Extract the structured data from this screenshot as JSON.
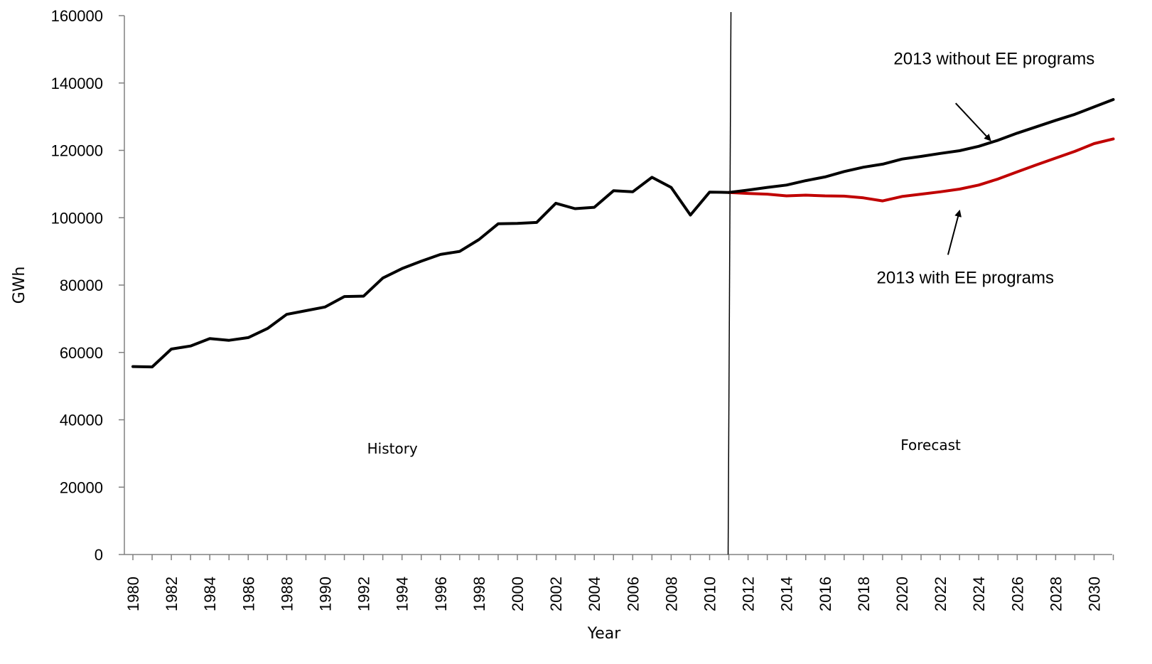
{
  "chart_data": {
    "type": "line",
    "title": "",
    "xlabel": "Year",
    "ylabel": "GWh",
    "xlim": [
      1980,
      2031
    ],
    "ylim": [
      0,
      160000
    ],
    "yticks": [
      0,
      20000,
      40000,
      60000,
      80000,
      100000,
      120000,
      140000,
      160000
    ],
    "xticks": [
      1980,
      1982,
      1984,
      1986,
      1988,
      1990,
      1992,
      1994,
      1996,
      1998,
      2000,
      2002,
      2004,
      2006,
      2008,
      2010,
      2012,
      2014,
      2016,
      2018,
      2020,
      2022,
      2024,
      2026,
      2028,
      2030
    ],
    "grid": false,
    "legend": "none",
    "divider_year": 2011,
    "regions": [
      {
        "label": "History",
        "x": 1993.5,
        "y": 30000
      },
      {
        "label": "Forecast",
        "x": 2021.5,
        "y": 31000
      }
    ],
    "series": [
      {
        "color": "#000000",
        "x": [
          1980,
          1981,
          1982,
          1983,
          1984,
          1985,
          1986,
          1987,
          1988,
          1989,
          1990,
          1991,
          1992,
          1993,
          1994,
          1995,
          1996,
          1997,
          1998,
          1999,
          2000,
          2001,
          2002,
          2003,
          2004,
          2005,
          2006,
          2007,
          2008,
          2009,
          2010,
          2011
        ],
        "y": [
          55800,
          55700,
          61000,
          61900,
          64100,
          63600,
          64400,
          67100,
          71300,
          72400,
          73500,
          76600,
          76700,
          82100,
          84900,
          87100,
          89100,
          90000,
          93500,
          98200,
          98300,
          98600,
          104300,
          102700,
          103100,
          108000,
          107700,
          112000,
          109000,
          100800,
          107600,
          107500
        ]
      },
      {
        "color": "#c00000",
        "x": [
          2011,
          2012,
          2013,
          2014,
          2015,
          2016,
          2017,
          2018,
          2019,
          2020,
          2021,
          2022,
          2023,
          2024,
          2025,
          2026,
          2027,
          2028,
          2029,
          2030,
          2031
        ],
        "y": [
          107500,
          107200,
          107000,
          106500,
          106700,
          106500,
          106400,
          105900,
          105000,
          106300,
          107000,
          107700,
          108500,
          109700,
          111500,
          113600,
          115700,
          117700,
          119700,
          122000,
          123400
        ]
      },
      {
        "color": "#000000",
        "x": [
          2011,
          2012,
          2013,
          2014,
          2015,
          2016,
          2017,
          2018,
          2019,
          2020,
          2021,
          2022,
          2023,
          2024,
          2025,
          2026,
          2027,
          2028,
          2029,
          2030,
          2031
        ],
        "y": [
          107500,
          108200,
          109000,
          109700,
          111000,
          112100,
          113700,
          115000,
          115900,
          117400,
          118200,
          119100,
          119900,
          121200,
          123000,
          125100,
          127000,
          128900,
          130700,
          132900,
          135100
        ]
      }
    ],
    "annotations": [
      {
        "text": "2013 without EE programs",
        "x": 2024.8,
        "y": 145500,
        "arrow_from": [
          2022.8,
          134000
        ],
        "arrow_to": [
          2024.6,
          123000
        ]
      },
      {
        "text": "2013 with EE programs",
        "x": 2023.3,
        "y": 80500,
        "arrow_from": [
          2022.4,
          89000
        ],
        "arrow_to": [
          2023.0,
          102000
        ]
      }
    ]
  }
}
